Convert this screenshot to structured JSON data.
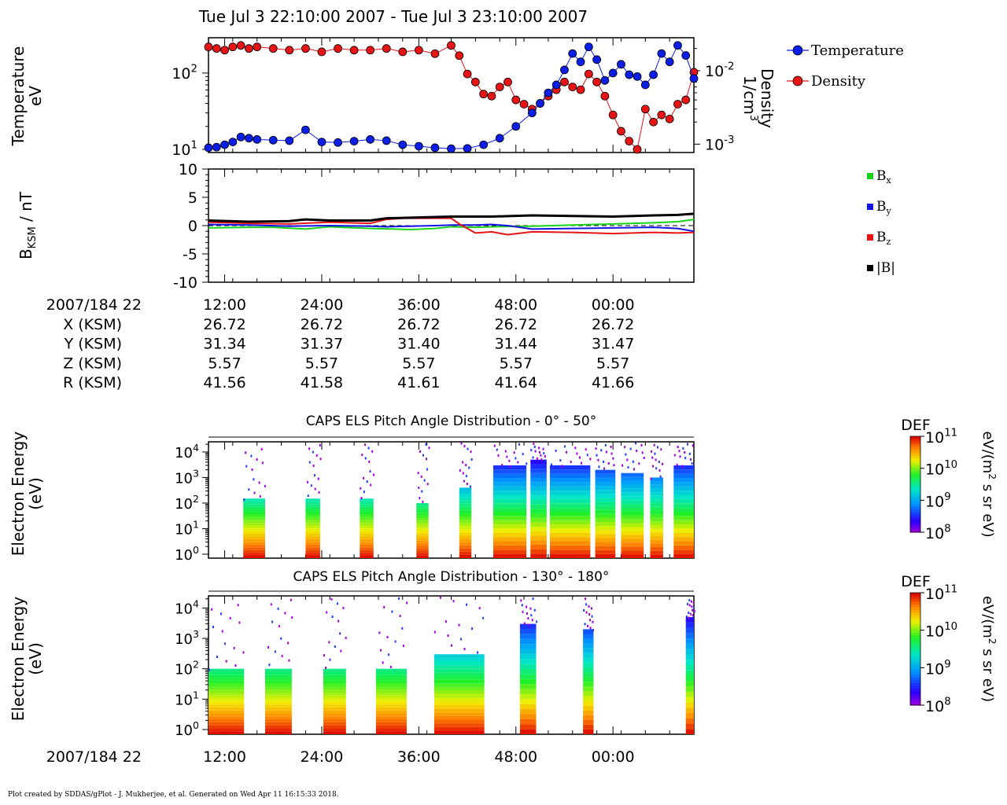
{
  "title": "Tue Jul 3 22:10:00 2007 - Tue Jul 3 23:10:00 2007",
  "footer": "Plot created by SDDAS/gPlot - J. Mukherjee, et al.  Generated on Wed Apr 11 16:15:33 2018.",
  "colors": {
    "temperature": "#0a1ee6",
    "density": "#e61414",
    "bx": "#19d219",
    "by": "#1414e6",
    "bz": "#e61414",
    "bmag": "#000000"
  },
  "chart_data": [
    {
      "type": "scatter",
      "id": "temp_density",
      "yscale": "log",
      "ylabel": [
        "Temperature",
        "eV"
      ],
      "y2label": [
        "Density",
        "1/cm³"
      ],
      "ylim": [
        10,
        290
      ],
      "y2lim": [
        0.00085,
        0.028
      ],
      "yticks": [
        {
          "v": 10,
          "b": "10",
          "e": "1"
        },
        {
          "v": 100,
          "b": "10",
          "e": "2"
        }
      ],
      "y2ticks": [
        {
          "v": 0.001,
          "b": "10",
          "e": "-3"
        },
        {
          "v": 0.01,
          "b": "10",
          "e": "-2"
        }
      ],
      "legend": {
        "placement": "right",
        "entries": [
          "Temperature",
          "Density"
        ]
      },
      "xlim": [
        0,
        60
      ],
      "series": [
        {
          "name": "Temperature",
          "x": [
            0,
            1,
            2,
            3,
            4,
            5,
            6,
            8,
            10,
            12,
            14,
            16,
            18,
            20,
            22,
            24,
            26,
            28,
            30,
            32,
            34,
            36,
            38,
            40,
            41,
            42,
            43,
            44,
            45,
            46,
            47,
            48,
            49,
            50,
            51,
            52,
            53,
            54,
            55,
            56,
            57,
            58,
            59,
            60
          ],
          "y": [
            10.5,
            10.7,
            11.5,
            12.5,
            14.5,
            14,
            13.5,
            13.2,
            13,
            18,
            12.5,
            12.3,
            12.8,
            13.5,
            13,
            11.5,
            11,
            10.5,
            10.2,
            10.3,
            11.5,
            14,
            20,
            30,
            40,
            55,
            70,
            110,
            180,
            140,
            220,
            150,
            80,
            100,
            130,
            95,
            90,
            70,
            95,
            180,
            140,
            230,
            170,
            85
          ]
        },
        {
          "name": "Density",
          "x": [
            0,
            1,
            2,
            3,
            4,
            5,
            6,
            8,
            10,
            12,
            14,
            16,
            18,
            20,
            22,
            24,
            26,
            28,
            30,
            31,
            32,
            33,
            34,
            35,
            36,
            37,
            38,
            39,
            40,
            41,
            42,
            43,
            44,
            45,
            46,
            47,
            48,
            49,
            50,
            51,
            52,
            53,
            54,
            55,
            56,
            57,
            58,
            59,
            60
          ],
          "y": [
            0.021,
            0.02,
            0.019,
            0.021,
            0.022,
            0.02,
            0.021,
            0.02,
            0.019,
            0.02,
            0.018,
            0.02,
            0.019,
            0.019,
            0.02,
            0.018,
            0.019,
            0.017,
            0.022,
            0.016,
            0.009,
            0.007,
            0.0048,
            0.0045,
            0.006,
            0.007,
            0.004,
            0.0035,
            0.003,
            0.0036,
            0.0045,
            0.0055,
            0.007,
            0.006,
            0.0055,
            0.009,
            0.007,
            0.0045,
            0.0025,
            0.0015,
            0.0011,
            0.00085,
            0.003,
            0.002,
            0.0025,
            0.0022,
            0.0035,
            0.004,
            0.0095
          ]
        }
      ]
    },
    {
      "type": "line",
      "id": "bfield",
      "ylabel": "B",
      "ylabel_sub": "KSM",
      "ylabel_tail": " / nT",
      "ylim": [
        -10,
        10
      ],
      "yticks": [
        10,
        5,
        0,
        -5,
        -10
      ],
      "xlim": [
        0,
        60
      ],
      "legend": {
        "placement": "right",
        "entries": [
          {
            "b": "B",
            "s": "x"
          },
          {
            "b": "B",
            "s": "y"
          },
          {
            "b": "B",
            "s": "z"
          },
          {
            "b": "|B|",
            "s": ""
          }
        ]
      },
      "series": [
        {
          "name": "Bx",
          "x": [
            0,
            5,
            8,
            12,
            15,
            20,
            25,
            28,
            30,
            33,
            35,
            40,
            45,
            50,
            55,
            58,
            60
          ],
          "y": [
            -0.4,
            -0.3,
            -0.3,
            -0.6,
            -0.2,
            -0.5,
            -0.7,
            -0.5,
            -0.2,
            -0.3,
            -0.2,
            -0.1,
            0.1,
            0.3,
            0.5,
            0.7,
            1.1
          ]
        },
        {
          "name": "By",
          "x": [
            0,
            5,
            10,
            15,
            20,
            22,
            25,
            28,
            30,
            33,
            35,
            37,
            40,
            45,
            50,
            55,
            58,
            60
          ],
          "y": [
            0.2,
            0.1,
            -0.1,
            0,
            -0.1,
            -0.2,
            -0.1,
            0,
            0.1,
            0.1,
            0.2,
            0,
            -0.6,
            -0.5,
            -0.4,
            -0.3,
            -0.5,
            -1.0
          ]
        },
        {
          "name": "Bz",
          "x": [
            0,
            5,
            10,
            15,
            20,
            22,
            24,
            28,
            30,
            31,
            33,
            35,
            37,
            40,
            45,
            50,
            55,
            58,
            60
          ],
          "y": [
            0.6,
            0.4,
            0.3,
            0.6,
            0.4,
            1.1,
            1.3,
            1.3,
            1.3,
            0.3,
            -1.3,
            -1.1,
            -1.6,
            -1.1,
            -1.2,
            -1.4,
            -1.2,
            -1.3,
            -1.2
          ]
        },
        {
          "name": "|B|",
          "x": [
            0,
            5,
            10,
            12,
            15,
            20,
            22,
            25,
            30,
            35,
            40,
            45,
            50,
            55,
            58,
            60
          ],
          "y": [
            0.9,
            0.7,
            0.8,
            1.1,
            0.9,
            0.9,
            1.3,
            1.4,
            1.6,
            1.6,
            1.8,
            1.7,
            1.6,
            1.8,
            1.9,
            2.1
          ]
        }
      ]
    },
    {
      "type": "heatmap",
      "id": "pad_low",
      "title": "CAPS ELS Pitch Angle Distribution - 0° - 50°",
      "ylabel": [
        "Electron Energy",
        "(eV)"
      ],
      "yscale": "log",
      "ylim": [
        0.7,
        25000
      ],
      "yticks": [
        {
          "b": "10",
          "e": "0"
        },
        {
          "b": "10",
          "e": "1"
        },
        {
          "b": "10",
          "e": "2"
        },
        {
          "b": "10",
          "e": "3"
        },
        {
          "b": "10",
          "e": "4"
        }
      ],
      "colorbar": {
        "label": "DEF",
        "units": "eV/(m² s sr eV)",
        "ticks": [
          {
            "b": "10",
            "e": "11"
          },
          {
            "b": "10",
            "e": "10"
          },
          {
            "b": "10",
            "e": "9"
          },
          {
            "b": "10",
            "e": "8"
          }
        ],
        "range": [
          100000000,
          100000000000
        ]
      },
      "blocks": [
        {
          "x": [
            4.3,
            7.0
          ],
          "top": 150
        },
        {
          "x": [
            12.0,
            13.8
          ],
          "top": 150
        },
        {
          "x": [
            18.7,
            20.4
          ],
          "top": 150
        },
        {
          "x": [
            25.7,
            27.2
          ],
          "top": 100
        },
        {
          "x": [
            31.0,
            32.5
          ],
          "top": 400
        },
        {
          "x": [
            35.2,
            39.3
          ],
          "top": 3000
        },
        {
          "x": [
            39.8,
            41.8
          ],
          "top": 5000
        },
        {
          "x": [
            42.2,
            47.2
          ],
          "top": 3000
        },
        {
          "x": [
            47.8,
            50.3
          ],
          "top": 2000
        },
        {
          "x": [
            51.0,
            53.8
          ],
          "top": 1500
        },
        {
          "x": [
            54.6,
            56.2
          ],
          "top": 1000
        },
        {
          "x": [
            57.5,
            60.0
          ],
          "top": 3000
        }
      ]
    },
    {
      "type": "heatmap",
      "id": "pad_high",
      "title": "CAPS ELS Pitch Angle Distribution - 130° - 180°",
      "ylabel": [
        "Electron Energy",
        "(eV)"
      ],
      "yscale": "log",
      "ylim": [
        0.7,
        25000
      ],
      "yticks": [
        {
          "b": "10",
          "e": "0"
        },
        {
          "b": "10",
          "e": "1"
        },
        {
          "b": "10",
          "e": "2"
        },
        {
          "b": "10",
          "e": "3"
        },
        {
          "b": "10",
          "e": "4"
        }
      ],
      "colorbar": {
        "label": "DEF",
        "units": "eV/(m² s sr eV)",
        "ticks": [
          {
            "b": "10",
            "e": "11"
          },
          {
            "b": "10",
            "e": "10"
          },
          {
            "b": "10",
            "e": "9"
          },
          {
            "b": "10",
            "e": "8"
          }
        ],
        "range": [
          100000000,
          100000000000
        ]
      },
      "blocks": [
        {
          "x": [
            0.0,
            4.4
          ],
          "top": 100
        },
        {
          "x": [
            7.0,
            10.3
          ],
          "top": 100
        },
        {
          "x": [
            14.2,
            17.0
          ],
          "top": 100
        },
        {
          "x": [
            20.7,
            24.5
          ],
          "top": 100
        },
        {
          "x": [
            27.9,
            34.1
          ],
          "top": 300
        },
        {
          "x": [
            38.5,
            40.5
          ],
          "top": 3000
        },
        {
          "x": [
            46.3,
            47.6
          ],
          "top": 2000
        },
        {
          "x": [
            59.0,
            60.0
          ],
          "top": 5000
        }
      ]
    }
  ],
  "time_axis": {
    "xlim": [
      0,
      60
    ],
    "ticks": [
      {
        "v": 2,
        "label": "12:00"
      },
      {
        "v": 14,
        "label": "24:00"
      },
      {
        "v": 26,
        "label": "36:00"
      },
      {
        "v": 38,
        "label": "48:00"
      },
      {
        "v": 50,
        "label": "00:00"
      }
    ],
    "minor_every": 3,
    "date_label": "2007/184 22",
    "ephemeris": [
      {
        "label": "X (KSM)",
        "values": [
          "26.72",
          "26.72",
          "26.72",
          "26.72",
          "26.72"
        ]
      },
      {
        "label": "Y (KSM)",
        "values": [
          "31.34",
          "31.37",
          "31.40",
          "31.44",
          "31.47"
        ]
      },
      {
        "label": "Z (KSM)",
        "values": [
          "5.57",
          "5.57",
          "5.57",
          "5.57",
          "5.57"
        ]
      },
      {
        "label": "R (KSM)",
        "values": [
          "41.56",
          "41.58",
          "41.61",
          "41.64",
          "41.66"
        ]
      }
    ]
  }
}
